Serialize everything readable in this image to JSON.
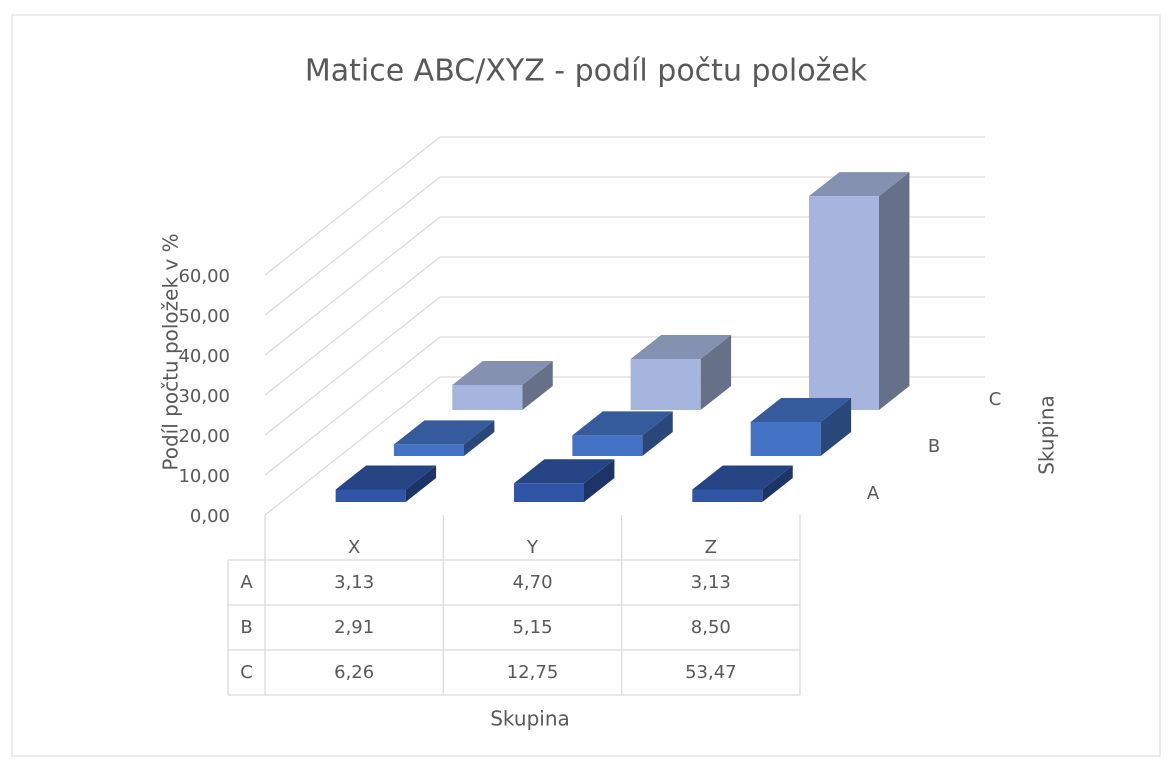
{
  "chart_data": {
    "type": "bar3d",
    "title": "Matice ABC/XYZ - podíl počtu položek",
    "y_label": "Podíl počtu položek v %",
    "x_label": "Skupina",
    "depth_label": "Skupina",
    "categories": [
      "X",
      "Y",
      "Z"
    ],
    "series": [
      {
        "name": "A",
        "color": "#2f55a4",
        "values": [
          3.13,
          4.7,
          3.13
        ],
        "value_labels": [
          "3,13",
          "4,70",
          "3,13"
        ]
      },
      {
        "name": "B",
        "color": "#4472c4",
        "values": [
          2.91,
          5.15,
          8.5
        ],
        "value_labels": [
          "2,91",
          "5,15",
          "8,50"
        ]
      },
      {
        "name": "C",
        "color": "#a6b5dd",
        "values": [
          6.26,
          12.75,
          53.47
        ],
        "value_labels": [
          "6,26",
          "12,75",
          "53,47"
        ]
      }
    ],
    "ylim": [
      0,
      60
    ],
    "yticks": [
      {
        "value": 0,
        "label": "0,00"
      },
      {
        "value": 10,
        "label": "10,00"
      },
      {
        "value": 20,
        "label": "20,00"
      },
      {
        "value": 30,
        "label": "30,00"
      },
      {
        "value": 40,
        "label": "40,00"
      },
      {
        "value": 50,
        "label": "50,00"
      },
      {
        "value": 60,
        "label": "60,00"
      }
    ],
    "grid": true,
    "data_table": true
  }
}
